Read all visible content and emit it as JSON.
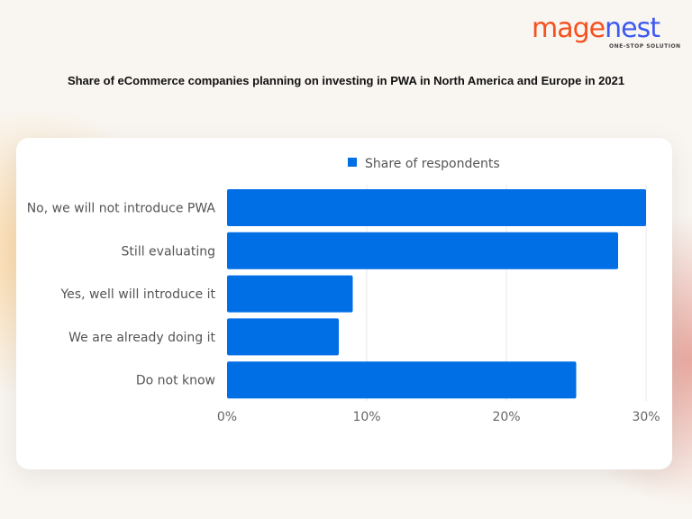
{
  "brand": {
    "logo_text_orange": "mage",
    "logo_text_blue": "nest",
    "tagline": "ONE-STOP SOLUTION"
  },
  "chart_data": {
    "type": "bar",
    "orientation": "horizontal",
    "title": "Share of eCommerce companies planning on investing in PWA in North America and Europe in 2021",
    "categories": [
      "No, we will not introduce PWA",
      "Still evaluating",
      "Yes, well will introduce it",
      "We are already doing it",
      "Do not know"
    ],
    "series": [
      {
        "name": "Share of respondents",
        "values": [
          30,
          28,
          9,
          8,
          25
        ],
        "color": "#006fe6"
      }
    ],
    "xlim": [
      0,
      30
    ],
    "xticks": [
      "0%",
      "10%",
      "20%",
      "30%"
    ],
    "grid": true,
    "legend": "top"
  }
}
